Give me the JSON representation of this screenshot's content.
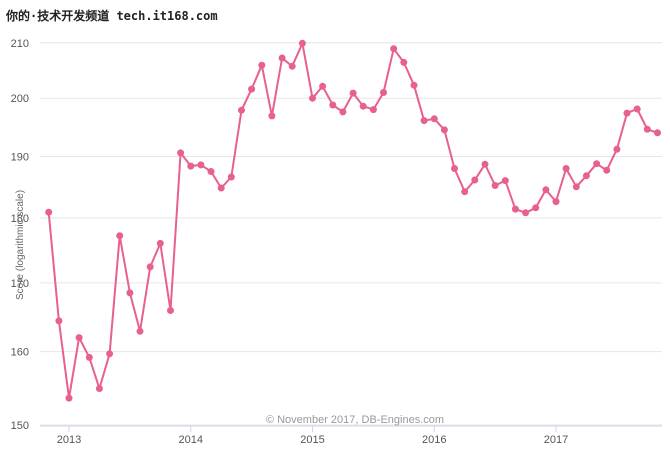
{
  "watermark": "你的·技术开发频道 tech.it168.com",
  "credits": "© November 2017, DB-Engines.com",
  "colors": {
    "series": "#e8608c",
    "grid": "#e6e6e6",
    "axis": "#ccd6eb"
  },
  "chart_data": {
    "type": "line",
    "title": "",
    "xlabel": "",
    "ylabel": "Score (logarithmic scale)",
    "y_scale": "log",
    "ylim": [
      150,
      212
    ],
    "y_ticks": [
      "150",
      "160",
      "170",
      "180",
      "190",
      "200",
      "210"
    ],
    "x_ticks": [
      "2013",
      "2014",
      "2015",
      "2016",
      "2017"
    ],
    "grid": true,
    "legend": "none",
    "series": [
      {
        "name": "",
        "x": [
          "2012-11",
          "2012-12",
          "2013-01",
          "2013-02",
          "2013-03",
          "2013-04",
          "2013-05",
          "2013-06",
          "2013-07",
          "2013-08",
          "2013-09",
          "2013-10",
          "2013-11",
          "2013-12",
          "2014-01",
          "2014-02",
          "2014-03",
          "2014-04",
          "2014-05",
          "2014-06",
          "2014-07",
          "2014-08",
          "2014-09",
          "2014-10",
          "2014-11",
          "2014-12",
          "2015-01",
          "2015-02",
          "2015-03",
          "2015-04",
          "2015-05",
          "2015-06",
          "2015-07",
          "2015-08",
          "2015-09",
          "2015-10",
          "2015-11",
          "2015-12",
          "2016-01",
          "2016-02",
          "2016-03",
          "2016-04",
          "2016-05",
          "2016-06",
          "2016-07",
          "2016-08",
          "2016-09",
          "2016-10",
          "2016-11",
          "2016-12",
          "2017-01",
          "2017-02",
          "2017-03",
          "2017-04",
          "2017-05",
          "2017-06",
          "2017-07",
          "2017-08",
          "2017-09",
          "2017-10",
          "2017-11"
        ],
        "values": [
          180.9,
          164.4,
          153.6,
          162.0,
          159.2,
          154.9,
          159.7,
          177.2,
          168.5,
          162.9,
          172.4,
          176.0,
          165.9,
          190.6,
          188.4,
          188.6,
          187.5,
          184.8,
          186.6,
          197.9,
          201.6,
          205.9,
          196.9,
          207.2,
          205.7,
          209.9,
          200.0,
          202.1,
          198.8,
          197.6,
          200.9,
          198.6,
          198.0,
          201.0,
          208.9,
          206.4,
          202.3,
          196.1,
          196.4,
          194.5,
          188.0,
          184.2,
          186.1,
          188.7,
          185.2,
          186.0,
          181.4,
          180.8,
          181.6,
          184.5,
          182.6,
          188.0,
          185.0,
          186.8,
          188.8,
          187.7,
          191.2,
          197.4,
          198.1,
          194.6,
          194.0
        ]
      }
    ]
  }
}
